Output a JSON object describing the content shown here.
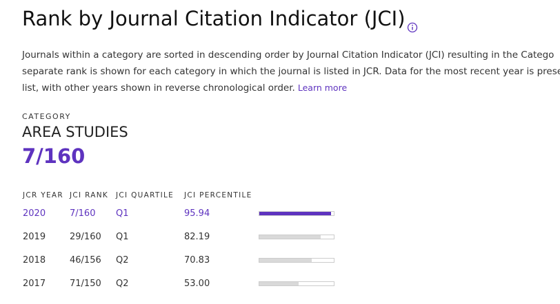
{
  "header": {
    "title": "Rank by Journal Citation Indicator (JCI)"
  },
  "description": {
    "lines": [
      "Journals within a category are sorted in descending order by Journal Citation Indicator (JCI) resulting in the Catego",
      "separate rank is shown for each category in which the journal is listed in JCR. Data for the most recent year is prese",
      "list, with other years shown in reverse chronological order."
    ],
    "link": "Learn more"
  },
  "category": {
    "label": "CATEGORY",
    "name": "AREA STUDIES",
    "rank": "7/160"
  },
  "table": {
    "columns": [
      "JCR YEAR",
      "JCI RANK",
      "JCI QUARTILE",
      "JCI PERCENTILE"
    ],
    "rows": [
      [
        "2020",
        "7/160",
        "Q1",
        "95.94"
      ],
      [
        "2019",
        "29/160",
        "Q1",
        "82.19"
      ],
      [
        "2018",
        "46/156",
        "Q2",
        "70.83"
      ],
      [
        "2017",
        "71/150",
        "Q2",
        "53.00"
      ]
    ]
  }
}
